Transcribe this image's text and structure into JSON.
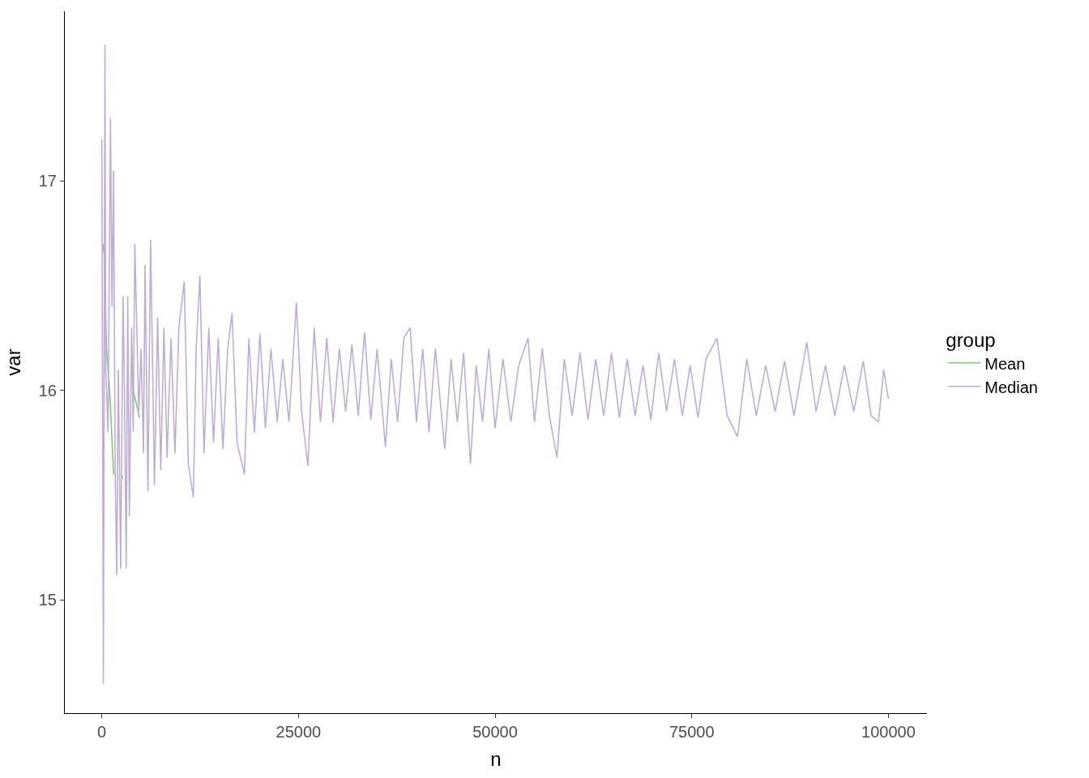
{
  "chart_data": {
    "type": "line",
    "xlabel": "n",
    "ylabel": "var",
    "legend_title": "group",
    "legend": "right",
    "marker": "none",
    "line_style": "solid",
    "xlim": [
      -4700,
      104900
    ],
    "xticks": [
      0,
      25000,
      50000,
      75000,
      100000
    ],
    "ylim": [
      14.46,
      17.81
    ],
    "yticks": [
      15,
      16,
      17
    ],
    "series": [
      {
        "name": "Mean",
        "color": "#7fc97f",
        "x": [
          150,
          300,
          600,
          1000,
          1500,
          1900,
          2100,
          2500,
          2700,
          3200,
          4000,
          4800
        ],
        "values": [
          16.7,
          16.65,
          16.2,
          16.0,
          15.6,
          null,
          null,
          15.6,
          15.58,
          null,
          16.0,
          15.87
        ]
      },
      {
        "name": "Median",
        "color": "#beaed4",
        "x": [
          0,
          200,
          400,
          500,
          800,
          1100,
          1300,
          1500,
          1700,
          1900,
          2100,
          2400,
          2700,
          2900,
          3100,
          3300,
          3500,
          3800,
          4000,
          4200,
          4700,
          5000,
          5300,
          5500,
          5870,
          6200,
          6700,
          7100,
          7500,
          7900,
          8300,
          8800,
          9300,
          9800,
          10480,
          11000,
          11640,
          12000,
          12470,
          13000,
          13600,
          14200,
          14800,
          15400,
          16000,
          16560,
          17200,
          18130,
          18700,
          19400,
          20100,
          20800,
          21500,
          22300,
          23000,
          23800,
          24740,
          25400,
          26200,
          27000,
          27800,
          28600,
          29400,
          30200,
          31000,
          31800,
          32600,
          33400,
          34200,
          35000,
          36060,
          36800,
          37600,
          38400,
          39200,
          40000,
          40800,
          41600,
          42400,
          43600,
          44400,
          45200,
          46000,
          46860,
          47600,
          48400,
          49200,
          50000,
          51000,
          52000,
          53000,
          54190,
          55000,
          56000,
          56900,
          57860,
          58800,
          59800,
          60800,
          61800,
          62800,
          63800,
          64800,
          65800,
          66800,
          67800,
          68800,
          69800,
          70800,
          71800,
          72800,
          73800,
          74800,
          75800,
          76800,
          78200,
          79500,
          80820,
          82000,
          83200,
          84400,
          85600,
          86800,
          88000,
          89620,
          90800,
          92000,
          93200,
          94400,
          95600,
          96800,
          97800,
          98740,
          99400,
          100000
        ],
        "values": [
          17.2,
          14.6,
          17.65,
          16.1,
          15.8,
          17.3,
          16.4,
          17.05,
          15.6,
          15.12,
          16.1,
          15.15,
          16.45,
          15.95,
          15.15,
          16.45,
          15.4,
          16.3,
          15.8,
          16.7,
          15.9,
          16.2,
          15.7,
          16.6,
          15.52,
          16.72,
          15.55,
          16.35,
          15.62,
          16.3,
          15.68,
          16.25,
          15.7,
          16.3,
          16.52,
          15.65,
          15.49,
          16.2,
          16.55,
          15.7,
          16.3,
          15.75,
          16.25,
          15.72,
          16.2,
          16.37,
          15.75,
          15.6,
          16.25,
          15.8,
          16.27,
          15.82,
          16.2,
          15.85,
          16.15,
          15.85,
          16.42,
          15.9,
          15.64,
          16.3,
          15.85,
          16.25,
          15.85,
          16.2,
          15.9,
          16.22,
          15.88,
          16.28,
          15.86,
          16.2,
          15.73,
          16.15,
          15.85,
          16.25,
          16.3,
          15.85,
          16.2,
          15.8,
          16.2,
          15.72,
          16.15,
          15.85,
          16.18,
          15.65,
          16.12,
          15.85,
          16.2,
          15.82,
          16.15,
          15.85,
          16.12,
          16.25,
          15.85,
          16.2,
          15.88,
          15.68,
          16.15,
          15.88,
          16.18,
          15.86,
          16.15,
          15.88,
          16.18,
          15.87,
          16.15,
          15.88,
          16.12,
          15.86,
          16.18,
          15.9,
          16.15,
          15.88,
          16.12,
          15.87,
          16.15,
          16.25,
          15.88,
          15.78,
          16.15,
          15.88,
          16.12,
          15.9,
          16.14,
          15.88,
          16.23,
          15.9,
          16.12,
          15.88,
          16.12,
          15.9,
          16.14,
          15.88,
          15.85,
          16.1,
          15.96
        ]
      }
    ]
  }
}
